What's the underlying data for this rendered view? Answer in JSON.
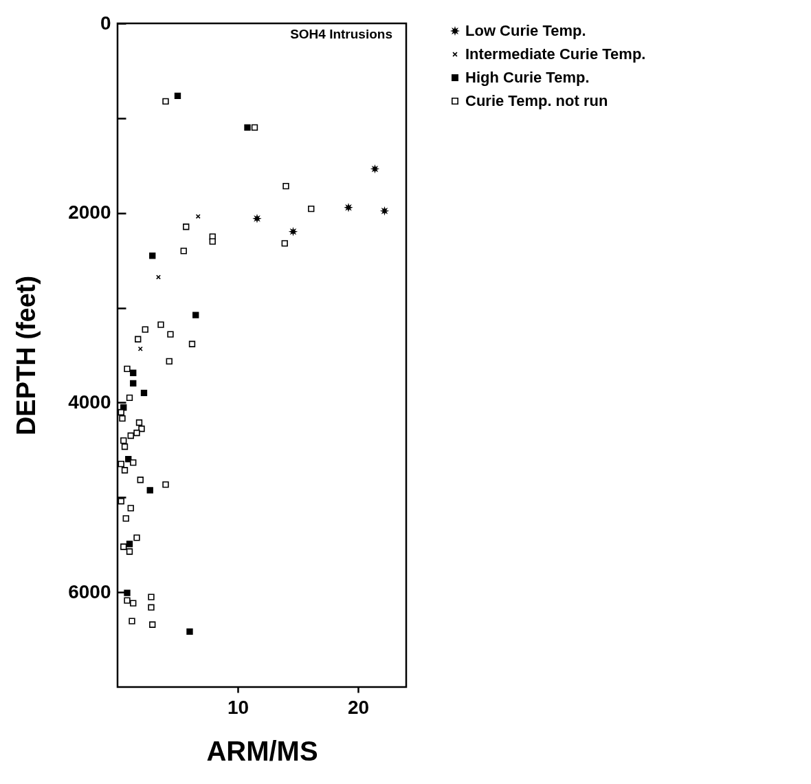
{
  "chart_data": {
    "type": "scatter",
    "title": "SOH4 Intrusions",
    "xlabel": "ARM/MS",
    "ylabel": "DEPTH (feet)",
    "xlim": [
      0,
      24
    ],
    "xticks": [
      10,
      20
    ],
    "ylim": [
      7000,
      0
    ],
    "yticks": [
      0,
      {
        "value": 1000,
        "label": null
      },
      2000,
      {
        "value": 3000,
        "label": null
      },
      4000,
      {
        "value": 5000,
        "label": null
      },
      6000
    ],
    "legend": "right",
    "grid": false,
    "series": [
      {
        "name": "Low Curie Temp.",
        "color": "#000000",
        "marker": "star",
        "x": [
          21.4,
          19.2,
          22.2,
          11.6,
          14.6
        ],
        "values": [
          1535,
          1942,
          1978,
          2058,
          2196
        ]
      },
      {
        "name": "Intermediate Curie Temp.",
        "color": "#000000",
        "marker": "cross",
        "x": [
          6.7,
          3.4,
          1.9
        ],
        "values": [
          2036,
          2676,
          3433
        ]
      },
      {
        "name": "High Curie Temp.",
        "color": "#000000",
        "marker": "square",
        "x": [
          5.0,
          10.8,
          2.9,
          6.5,
          1.3,
          1.3,
          2.2,
          0.5,
          0.9,
          2.7,
          1.0,
          0.8,
          6.0
        ],
        "values": [
          764,
          1098,
          2451,
          3076,
          3687,
          3796,
          3898,
          4051,
          4596,
          4924,
          5491,
          6007,
          6415
        ]
      },
      {
        "name": "Curie Temp. not run",
        "color": "#000000",
        "marker": "square",
        "x": [
          4.0,
          11.4,
          14.0,
          16.1,
          13.9,
          5.7,
          7.9,
          7.9,
          5.5,
          3.6,
          2.3,
          4.4,
          1.7,
          6.2,
          4.3,
          0.8,
          1.0,
          0.3,
          0.4,
          1.8,
          2.0,
          1.6,
          1.1,
          0.5,
          0.6,
          0.3,
          1.3,
          0.6,
          1.9,
          4.0,
          0.3,
          1.1,
          0.7,
          1.6,
          0.5,
          1.0,
          0.8,
          1.3,
          2.8,
          2.8,
          1.2,
          2.9
        ],
        "values": [
          822,
          1098,
          1716,
          1956,
          2320,
          2145,
          2250,
          2300,
          2400,
          3178,
          3229,
          3280,
          3331,
          3382,
          3564,
          3644,
          3949,
          4102,
          4167,
          4211,
          4276,
          4320,
          4349,
          4400,
          4465,
          4647,
          4633,
          4713,
          4815,
          4865,
          5040,
          5113,
          5222,
          5425,
          5520,
          5571,
          6087,
          6116,
          6051,
          6160,
          6305,
          6342
        ]
      }
    ]
  }
}
